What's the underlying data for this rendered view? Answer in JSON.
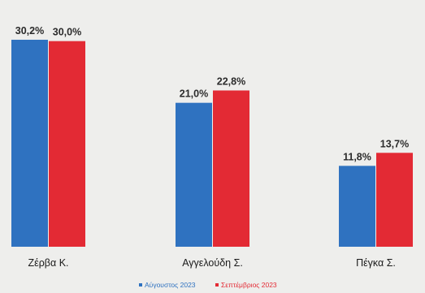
{
  "chart_data": {
    "type": "bar",
    "categories": [
      "Ζέρβα Κ.",
      "Αγγελούδη Σ.",
      "Πέγκα Σ."
    ],
    "series": [
      {
        "name": "Αύγουστος 2023",
        "color": "#2f72c0",
        "values": [
          30.2,
          21.0,
          11.8
        ],
        "labels": [
          "30,2%",
          "21,0%",
          "11,8%"
        ]
      },
      {
        "name": "Σεπτέμβριος 2023",
        "color": "#e32a34",
        "values": [
          30.0,
          22.8,
          13.7
        ],
        "labels": [
          "30,0%",
          "22,8%",
          "13,7%"
        ]
      }
    ],
    "ylim": [
      0,
      31.5
    ],
    "legend_position": "bottom-center",
    "grid": false
  }
}
